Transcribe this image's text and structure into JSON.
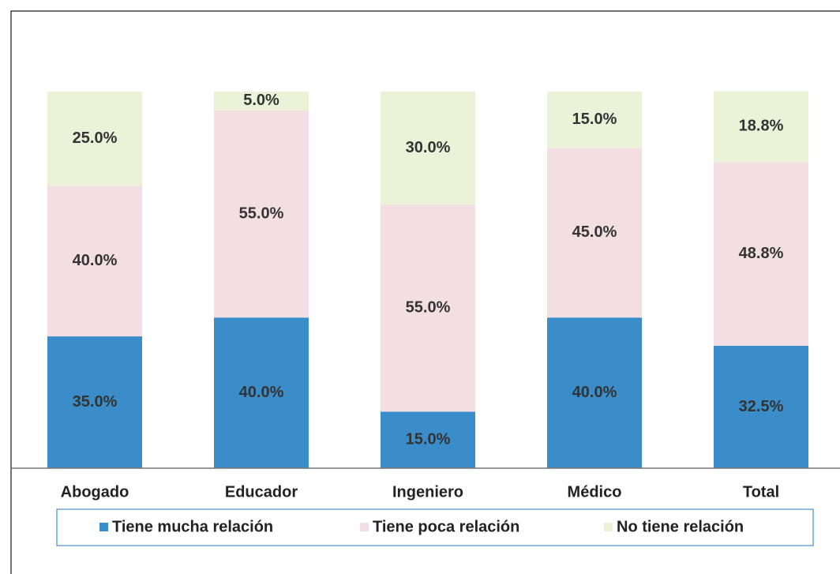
{
  "chart_data": {
    "type": "stacked_bar",
    "categories": [
      "Abogado",
      "Educador",
      "Ingeniero",
      "Médico",
      "Total"
    ],
    "series": [
      {
        "name": "Tiene mucha relación",
        "color": "#3a8dc9",
        "values": [
          35,
          40,
          15,
          40,
          32.5
        ],
        "value_labels": [
          "35.0%",
          "40.0%",
          "15.0%",
          "40.0%",
          "32.5%"
        ]
      },
      {
        "name": "Tiene poca relación",
        "color": "#f2dee3",
        "values": [
          40,
          55,
          55,
          45,
          48.8
        ],
        "value_labels": [
          "40.0%",
          "55.0%",
          "55.0%",
          "45.0%",
          "48.8%"
        ]
      },
      {
        "name": "No tiene relación",
        "color": "#ebf2d8",
        "values": [
          25,
          5,
          30,
          15,
          18.8
        ],
        "value_labels": [
          "25.0%",
          "5.0%",
          "30.0%",
          "15.0%",
          "18.8%"
        ]
      }
    ],
    "ylim": [
      0,
      100
    ],
    "legend": "bottom"
  }
}
